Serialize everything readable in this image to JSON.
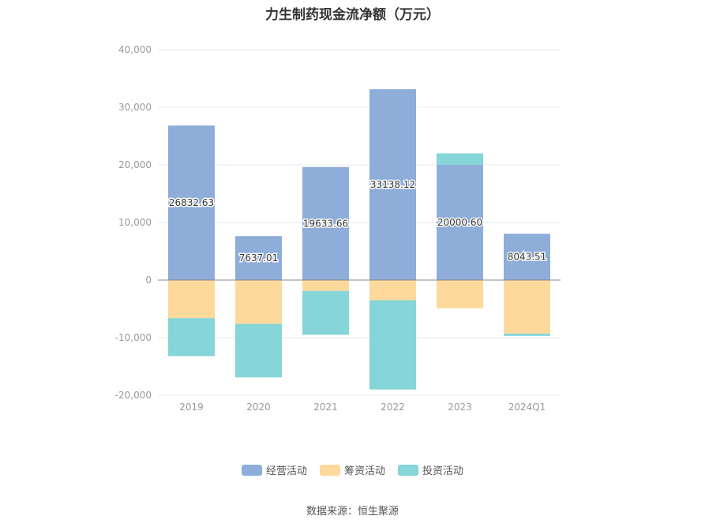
{
  "chart_data": {
    "type": "bar",
    "stacked": true,
    "title": "力生制药现金流净额（万元）",
    "xlabel": "",
    "ylabel": "",
    "categories": [
      "2019",
      "2020",
      "2021",
      "2022",
      "2023",
      "2024Q1"
    ],
    "ylim": [
      -20000,
      40000
    ],
    "yticks": [
      -20000,
      -10000,
      0,
      10000,
      20000,
      30000,
      40000
    ],
    "ytick_labels": [
      "-20,000",
      "-10,000",
      "0",
      "10,000",
      "20,000",
      "30,000",
      "40,000"
    ],
    "grid": true,
    "legend_position": "bottom-center",
    "series": [
      {
        "name": "经营活动",
        "color": "#8eadd9",
        "values": [
          26832.63,
          7637.01,
          19633.66,
          33138.12,
          20000.6,
          8043.51
        ],
        "labels": [
          "26832.63",
          "7637.01",
          "19633.66",
          "33138.12",
          "20000.60",
          "8043.51"
        ]
      },
      {
        "name": "筹资活动",
        "color": "#fdd99b",
        "values": [
          -6600,
          -7600,
          -1900,
          -3500,
          -4900,
          -9300
        ]
      },
      {
        "name": "投资活动",
        "color": "#86d5d8",
        "values": [
          -6600,
          -9300,
          -7600,
          -15500,
          2000,
          -400
        ]
      }
    ]
  },
  "source": "数据来源：恒生聚源"
}
